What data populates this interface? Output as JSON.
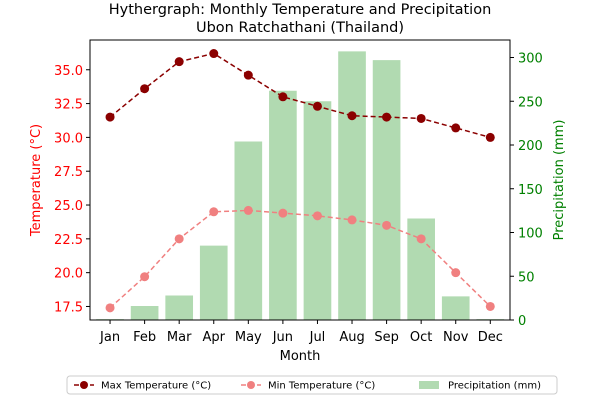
{
  "chart_data": {
    "type": "bar+line",
    "title": "Hythergraph: Monthly Temperature and Precipitation",
    "subtitle": "Ubon Ratchathani (Thailand)",
    "xlabel": "Month",
    "ylabel_left": "Temperature (°C)",
    "ylabel_right": "Precipitation (mm)",
    "categories": [
      "Jan",
      "Feb",
      "Mar",
      "Apr",
      "May",
      "Jun",
      "Jul",
      "Aug",
      "Sep",
      "Oct",
      "Nov",
      "Dec"
    ],
    "y_left_range": [
      16.5,
      37.2
    ],
    "y_left_ticks": [
      17.5,
      20.0,
      22.5,
      25.0,
      27.5,
      30.0,
      32.5,
      35.0
    ],
    "y_right_range": [
      0,
      320
    ],
    "y_right_ticks": [
      0,
      50,
      100,
      150,
      200,
      250,
      300
    ],
    "grid": false,
    "legend_position": "bottom-center",
    "series": [
      {
        "name": "Max Temperature (°C)",
        "type": "line",
        "axis": "left",
        "color": "#8b0000",
        "values": [
          31.5,
          33.6,
          35.6,
          36.2,
          34.6,
          33.0,
          32.3,
          31.6,
          31.5,
          31.4,
          30.7,
          30.0
        ]
      },
      {
        "name": "Min Temperature (°C)",
        "type": "line",
        "axis": "left",
        "color": "#f08080",
        "values": [
          17.4,
          19.7,
          22.5,
          24.5,
          24.6,
          24.4,
          24.2,
          23.9,
          23.5,
          22.5,
          20.0,
          17.5
        ]
      },
      {
        "name": "Precipitation (mm)",
        "type": "bar",
        "axis": "right",
        "color": "#b1dab1",
        "values": [
          1,
          16,
          28,
          85,
          204,
          262,
          250,
          307,
          297,
          116,
          27,
          1
        ]
      }
    ],
    "left_axis_color": "#ff0000",
    "right_axis_color": "#008000"
  }
}
